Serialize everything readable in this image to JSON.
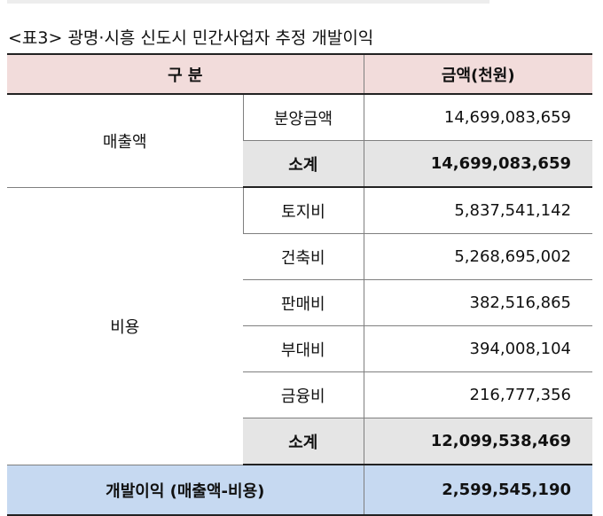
{
  "caption": "<표3> 광명·시흥 신도시 민간사업자 추정 개발이익",
  "header": {
    "category": "구 분",
    "amount": "금액(천원)"
  },
  "sales": {
    "label": "매출액",
    "rows": [
      {
        "item": "분양금액",
        "amount": "14,699,083,659"
      }
    ],
    "subtotal": {
      "item": "소계",
      "amount": "14,699,083,659"
    }
  },
  "costs": {
    "label": "비용",
    "rows": [
      {
        "item": "토지비",
        "amount": "5,837,541,142"
      },
      {
        "item": "건축비",
        "amount": "5,268,695,002"
      },
      {
        "item": "판매비",
        "amount": "382,516,865"
      },
      {
        "item": "부대비",
        "amount": "394,008,104"
      },
      {
        "item": "금융비",
        "amount": "216,777,356"
      }
    ],
    "subtotal": {
      "item": "소계",
      "amount": "12,099,538,469"
    }
  },
  "total": {
    "label": "개발이익 (매출액-비용)",
    "amount": "2,599,545,190"
  }
}
